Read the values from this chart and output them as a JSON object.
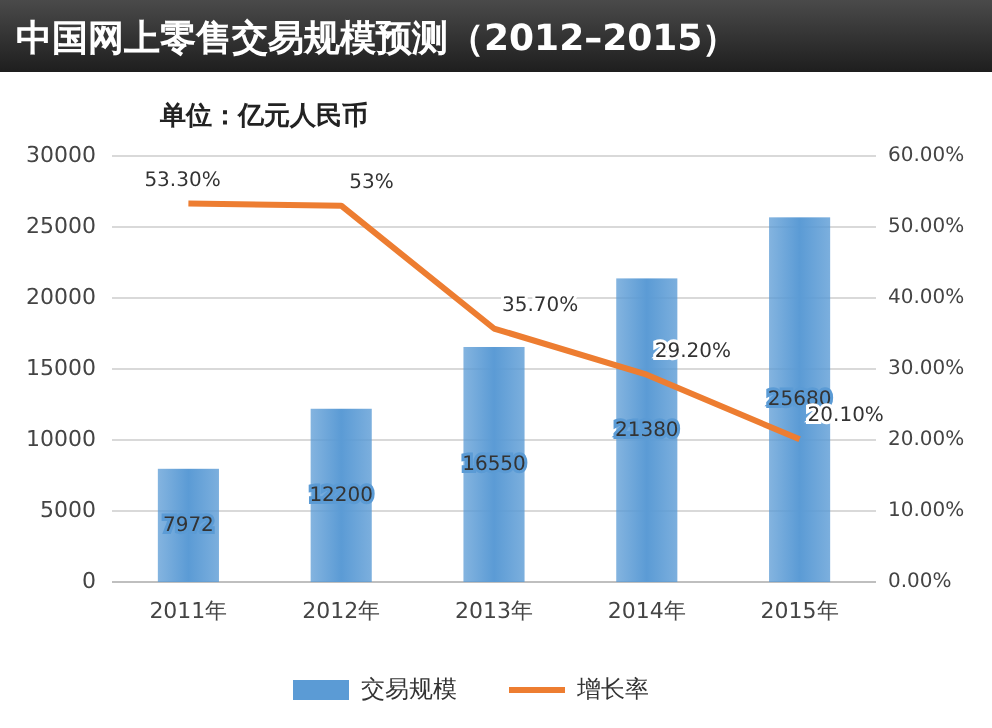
{
  "chart_data": {
    "type": "bar",
    "title": "中国网上零售交易规模预测（2012–2015）",
    "subtitle": "单位：亿元人民币",
    "categories": [
      "2011年",
      "2012年",
      "2013年",
      "2014年",
      "2015年"
    ],
    "series": [
      {
        "name": "交易规模",
        "color": "#5b9bd5",
        "values": [
          7972,
          12200,
          16550,
          21380,
          25680
        ],
        "value_labels": [
          "7972",
          "12200",
          "16550",
          "21380",
          "25680"
        ]
      },
      {
        "name": "增长率",
        "type": "line",
        "axis": "y2",
        "color": "#ed7d31",
        "values": [
          53.3,
          53,
          35.7,
          29.2,
          20.1
        ],
        "value_labels": [
          "53.30%",
          "53%",
          "35.70%",
          "29.20%",
          "20.10%"
        ]
      }
    ],
    "ylim": [
      0,
      30000
    ],
    "yticks": [
      0,
      5000,
      10000,
      15000,
      20000,
      25000,
      30000
    ],
    "y2lim": [
      0,
      60
    ],
    "y2ticks": [
      {
        "value": 0,
        "label": "0.00%"
      },
      {
        "value": 10,
        "label": "10.00%"
      },
      {
        "value": 20,
        "label": "20.00%"
      },
      {
        "value": 30,
        "label": "30.00%"
      },
      {
        "value": 40,
        "label": "40.00%"
      },
      {
        "value": 50,
        "label": "50.00%"
      },
      {
        "value": 60,
        "label": "60.00%"
      }
    ],
    "grid": "y",
    "legend": "bottom",
    "marker": "none"
  }
}
